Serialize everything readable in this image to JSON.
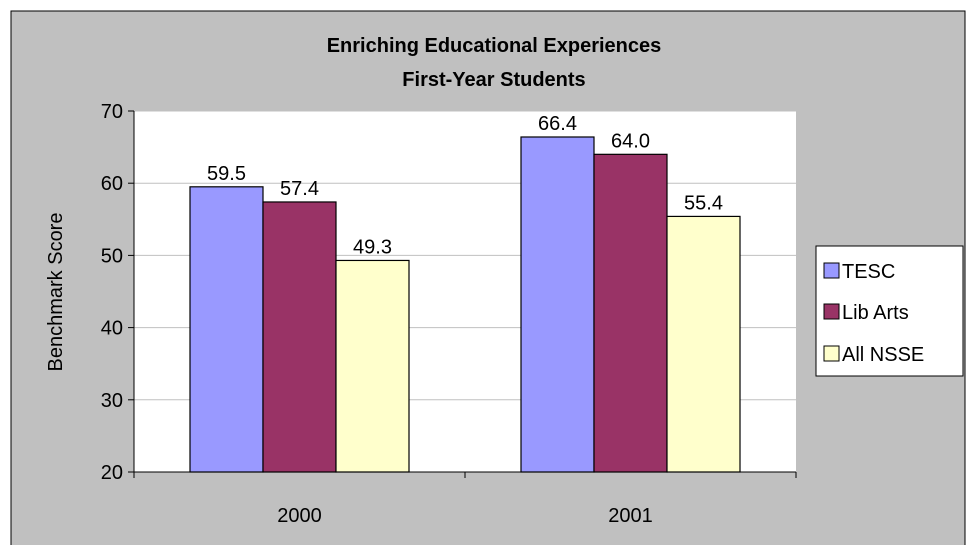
{
  "chart_data": {
    "type": "bar",
    "title_lines": [
      "Enriching Educational Experiences",
      "First-Year Students"
    ],
    "xlabel": "",
    "ylabel": "Benchmark Score",
    "ylim": [
      20,
      70
    ],
    "yticks": [
      20,
      30,
      40,
      50,
      60,
      70
    ],
    "grid": true,
    "legend_position": "right",
    "categories": [
      "2000",
      "2001"
    ],
    "series": [
      {
        "name": "TESC",
        "values": [
          59.5,
          66.4
        ],
        "labels": [
          "59.5",
          "66.4"
        ],
        "color": "#9999ff"
      },
      {
        "name": "Lib Arts",
        "values": [
          57.4,
          64.0
        ],
        "labels": [
          "57.4",
          "64.0"
        ],
        "color": "#993366"
      },
      {
        "name": "All NSSE",
        "values": [
          49.3,
          55.4
        ],
        "labels": [
          "49.3",
          "55.4"
        ],
        "color": "#ffffcc"
      }
    ],
    "colors": {
      "chart_background": "#c0c0c0",
      "plot_background": "#ffffff",
      "gridline": "#c0c0c0",
      "border": "#000000"
    }
  }
}
